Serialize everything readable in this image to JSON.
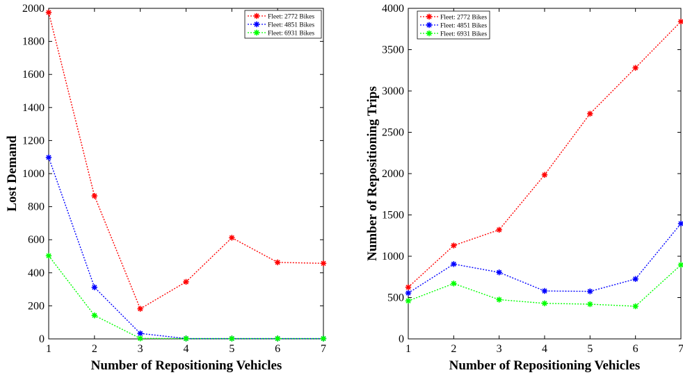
{
  "chart_data": [
    {
      "type": "line",
      "xlabel": "Number of Repositioning Vehicles",
      "ylabel": "Lost Demand",
      "xlim": [
        1,
        7
      ],
      "ylim": [
        0,
        2000
      ],
      "x": [
        1,
        2,
        3,
        4,
        5,
        6,
        7
      ],
      "xticks": [
        "1",
        "2",
        "3",
        "4",
        "5",
        "6",
        "7"
      ],
      "yticks": [
        "0",
        "200",
        "400",
        "600",
        "800",
        "1000",
        "1200",
        "1400",
        "1600",
        "1800",
        "2000"
      ],
      "legend_position": "top-right",
      "series": [
        {
          "name": "Fleet: 2772 Bikes",
          "color": "#ff0000",
          "values": [
            1975,
            865,
            182,
            345,
            612,
            463,
            457
          ]
        },
        {
          "name": "Fleet: 4851 Bikes",
          "color": "#0000ff",
          "values": [
            1098,
            312,
            33,
            2,
            2,
            2,
            2
          ]
        },
        {
          "name": "Fleet: 6931 Bikes",
          "color": "#00ff00",
          "values": [
            503,
            142,
            3,
            2,
            2,
            2,
            2
          ]
        }
      ]
    },
    {
      "type": "line",
      "xlabel": "Number of Repositioning Vehicles",
      "ylabel": "Number of Repositioning Trips",
      "xlim": [
        1,
        7
      ],
      "ylim": [
        0,
        4000
      ],
      "x": [
        1,
        2,
        3,
        4,
        5,
        6,
        7
      ],
      "xticks": [
        "1",
        "2",
        "3",
        "4",
        "5",
        "6",
        "7"
      ],
      "yticks": [
        "0",
        "500",
        "1000",
        "1500",
        "2000",
        "2500",
        "3000",
        "3500",
        "4000"
      ],
      "legend_position": "top-left",
      "series": [
        {
          "name": "Fleet: 2772 Bikes",
          "color": "#ff0000",
          "values": [
            625,
            1130,
            1320,
            1985,
            2725,
            3280,
            3840
          ]
        },
        {
          "name": "Fleet: 4851 Bikes",
          "color": "#0000ff",
          "values": [
            555,
            905,
            805,
            580,
            575,
            725,
            1395
          ]
        },
        {
          "name": "Fleet: 6931 Bikes",
          "color": "#00ff00",
          "values": [
            460,
            670,
            475,
            430,
            420,
            395,
            895
          ]
        }
      ]
    }
  ]
}
